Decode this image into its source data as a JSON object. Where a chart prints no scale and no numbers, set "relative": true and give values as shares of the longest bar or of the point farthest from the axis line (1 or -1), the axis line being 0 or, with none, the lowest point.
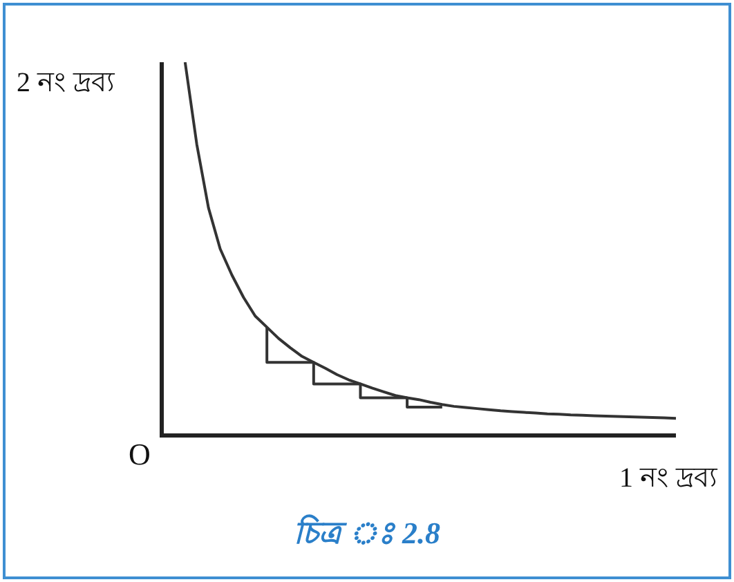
{
  "chart_data": {
    "type": "line",
    "relative": true,
    "xlabel": "1 নং দ্রব্য",
    "ylabel": "2 নং দ্রব্য",
    "annotations": [
      "O",
      "চিত্র ঃ 2.8"
    ],
    "marker": "none",
    "line_style": "solid",
    "categories": [
      null,
      null,
      null,
      null,
      null,
      null,
      null,
      null,
      null,
      null,
      null,
      null,
      null,
      null,
      null,
      null,
      null,
      null,
      null,
      null,
      null,
      null,
      null,
      null,
      null,
      null,
      null,
      null,
      null,
      null,
      null,
      null,
      null,
      null,
      null,
      null,
      null,
      null,
      null,
      null,
      null,
      null,
      null,
      null,
      null
    ],
    "series": [
      {
        "color": "#333333",
        "values": [
          null,
          null,
          1.0,
          0.78,
          0.61,
          0.5,
          0.43,
          0.37,
          0.32,
          0.29,
          0.26,
          0.235,
          0.212,
          0.196,
          0.18,
          0.163,
          0.149,
          0.138,
          0.127,
          0.117,
          0.107,
          0.101,
          0.096,
          0.089,
          0.083,
          0.078,
          0.075,
          0.072,
          0.069,
          0.066,
          0.064,
          0.062,
          0.06,
          0.058,
          0.057,
          0.055,
          0.054,
          0.053,
          0.052,
          0.051,
          0.05,
          0.049,
          0.048,
          0.047,
          0.046
        ]
      },
      {
        "type": "step",
        "color": "#333333",
        "values": [
          null,
          null,
          null,
          null,
          null,
          null,
          null,
          null,
          null,
          0.29,
          null,
          null,
          null,
          0.196,
          null,
          null,
          null,
          0.138,
          null,
          null,
          null,
          0.101,
          null,
          null,
          0.076,
          null,
          null,
          null,
          null,
          null,
          null,
          null,
          null,
          null,
          null,
          null,
          null,
          null,
          null,
          null,
          null,
          null,
          null,
          null,
          null
        ]
      }
    ]
  }
}
